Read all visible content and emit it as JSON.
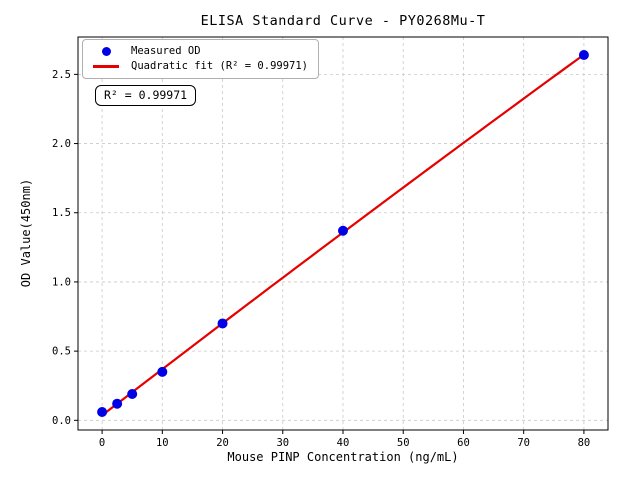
{
  "chart_data": {
    "type": "scatter",
    "title": "ELISA Standard Curve - PY0268Mu-T",
    "xlabel": "Mouse PINP Concentration (ng/mL)",
    "ylabel": "OD Value(450nm)",
    "x": [
      0,
      2.5,
      5,
      10,
      20,
      40,
      80
    ],
    "series": [
      {
        "name": "Measured OD",
        "kind": "scatter",
        "values": [
          0.06,
          0.12,
          0.19,
          0.35,
          0.7,
          1.37,
          2.64
        ],
        "color": "#0000e6"
      },
      {
        "name": "Quadratic fit (R² = 0.99971)",
        "kind": "quadratic-fit-line",
        "fit_of": "Measured OD",
        "color": "#e60000"
      }
    ],
    "annotation": "R² = 0.99971",
    "r_squared": "0.99971",
    "xticks": [
      0,
      10,
      20,
      30,
      40,
      50,
      60,
      70,
      80
    ],
    "yticks": [
      0.0,
      0.5,
      1.0,
      1.5,
      2.0,
      2.5
    ],
    "xlim": [
      -4,
      84
    ],
    "ylim": [
      -0.07,
      2.77
    ],
    "grid": true,
    "grid_color": "#c9c9c9",
    "legend_position": "upper left"
  }
}
